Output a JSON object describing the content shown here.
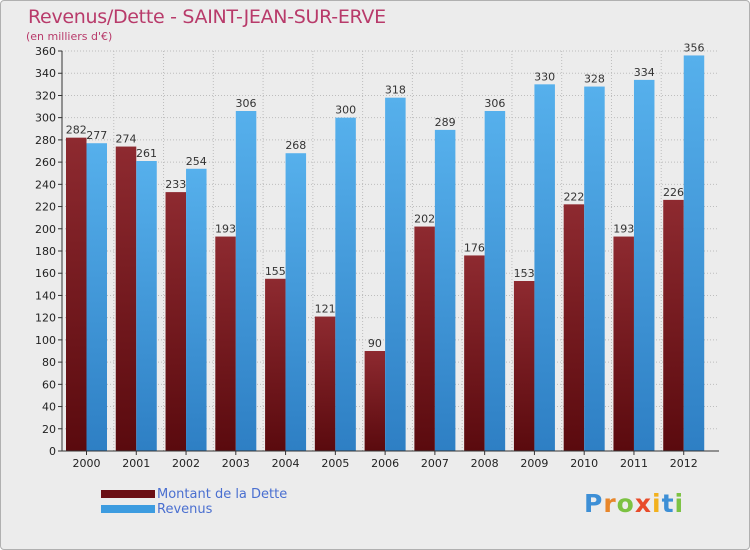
{
  "title": "Revenus/Dette - SAINT-JEAN-SUR-ERVE",
  "subtitle": "(en milliers d'€)",
  "legend": {
    "dette": "Montant de la Dette",
    "revenus": "Revenus"
  },
  "logo": {
    "text": "Proxiti",
    "letters": [
      "P",
      "r",
      "o",
      "x",
      "i",
      "t",
      "i"
    ]
  },
  "colors": {
    "dette": "#7a1a1f",
    "revenus": "#3d9ce0",
    "background": "#ececec",
    "title": "#b83a6a"
  },
  "chart_data": {
    "type": "bar",
    "title": "Revenus/Dette - SAINT-JEAN-SUR-ERVE",
    "subtitle": "(en milliers d'€)",
    "categories": [
      "2000",
      "2001",
      "2002",
      "2003",
      "2004",
      "2005",
      "2006",
      "2007",
      "2008",
      "2009",
      "2010",
      "2011",
      "2012"
    ],
    "series": [
      {
        "name": "Montant de la Dette",
        "values": [
          282,
          274,
          233,
          193,
          155,
          121,
          90,
          202,
          176,
          153,
          222,
          193,
          226
        ]
      },
      {
        "name": "Revenus",
        "values": [
          277,
          261,
          254,
          306,
          268,
          300,
          318,
          289,
          306,
          330,
          328,
          334,
          356
        ]
      }
    ],
    "ylim": [
      0,
      360
    ],
    "ytick_step": 20,
    "grid": true,
    "legend_position": "bottom-left"
  }
}
